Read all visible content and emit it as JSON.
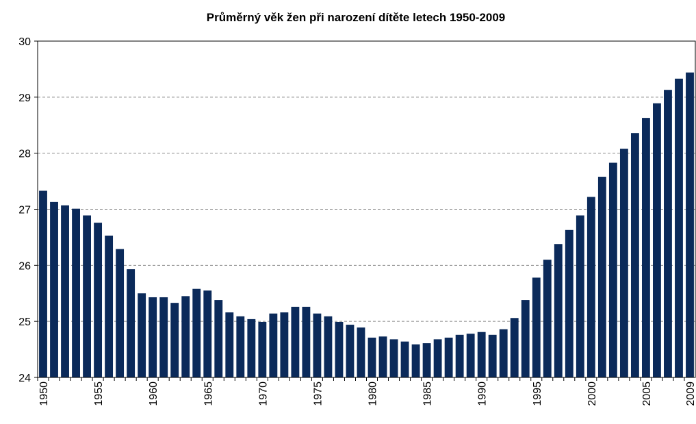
{
  "chart_data": {
    "type": "bar",
    "title": "Průměrný věk žen při narození dítěte letech 1950-2009",
    "categories": [
      "1950",
      null,
      null,
      null,
      null,
      "1955",
      null,
      null,
      null,
      null,
      "1960",
      null,
      null,
      null,
      null,
      "1965",
      null,
      null,
      null,
      null,
      "1970",
      null,
      null,
      null,
      null,
      "1975",
      null,
      null,
      null,
      null,
      "1980",
      null,
      null,
      null,
      null,
      "1985",
      null,
      null,
      null,
      null,
      "1990",
      null,
      null,
      null,
      null,
      "1995",
      null,
      null,
      null,
      null,
      "2000",
      null,
      null,
      null,
      null,
      "2005",
      null,
      null,
      null,
      "2009"
    ],
    "values": [
      27.33,
      27.13,
      27.07,
      27.01,
      26.89,
      26.76,
      26.53,
      26.29,
      25.93,
      25.5,
      25.43,
      25.43,
      25.33,
      25.45,
      25.58,
      25.55,
      25.38,
      25.16,
      25.09,
      25.04,
      24.99,
      25.14,
      25.16,
      25.26,
      25.26,
      25.14,
      25.09,
      24.99,
      24.94,
      24.89,
      24.71,
      24.73,
      24.68,
      24.64,
      24.59,
      24.61,
      24.68,
      24.71,
      24.76,
      24.78,
      24.81,
      24.76,
      24.86,
      25.06,
      25.38,
      25.78,
      26.1,
      26.38,
      26.63,
      26.89,
      27.22,
      27.58,
      27.83,
      28.08,
      28.36,
      28.63,
      28.89,
      29.13,
      29.33,
      29.44
    ],
    "color": "#0b2a5a",
    "ylim": [
      24,
      30
    ],
    "yticks": [
      24,
      25,
      26,
      27,
      28,
      29,
      30
    ],
    "grid": true
  }
}
